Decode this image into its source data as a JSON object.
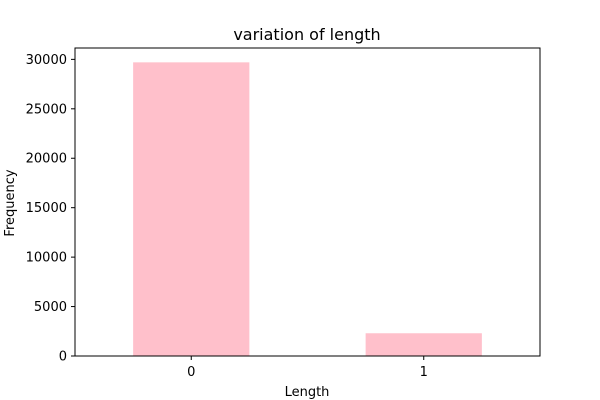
{
  "chart_data": {
    "type": "bar",
    "title": "variation of length",
    "xlabel": "Length",
    "ylabel": "Frequency",
    "categories": [
      "0",
      "1"
    ],
    "values": [
      29700,
      2300
    ],
    "ylim": [
      0,
      31150
    ],
    "yticks": [
      0,
      5000,
      10000,
      15000,
      20000,
      25000,
      30000
    ],
    "bar_color": "#ffc0cb",
    "grid": false,
    "legend": "none"
  }
}
